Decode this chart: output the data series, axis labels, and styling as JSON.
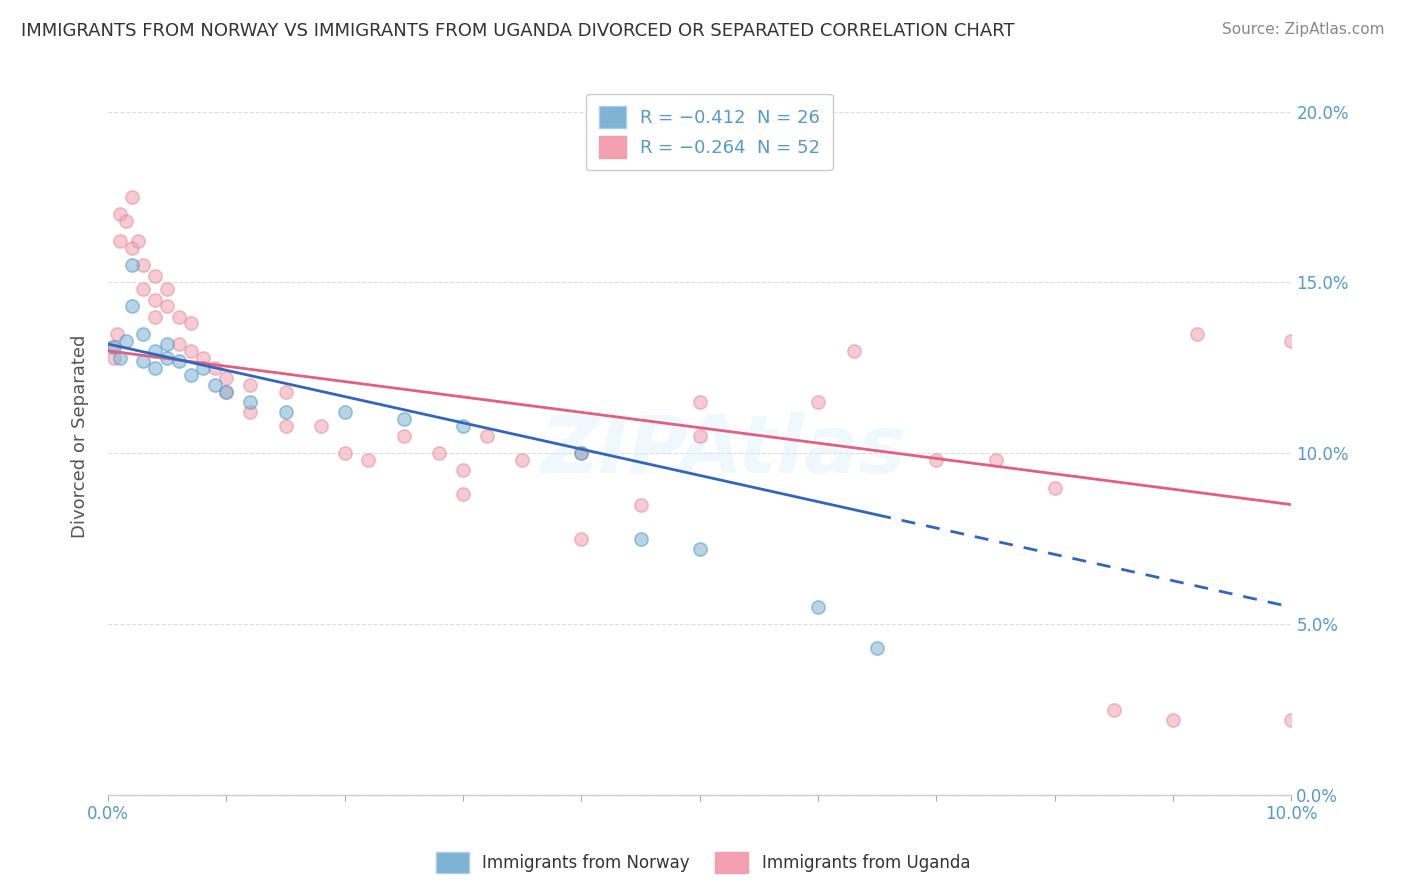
{
  "title": "IMMIGRANTS FROM NORWAY VS IMMIGRANTS FROM UGANDA DIVORCED OR SEPARATED CORRELATION CHART",
  "source": "Source: ZipAtlas.com",
  "ylabel": "Divorced or Separated",
  "watermark": "ZIPAtlas",
  "legend": [
    {
      "label": "R = −0.412  N = 26",
      "color": "#a8c4e0"
    },
    {
      "label": "R = −0.264  N = 52",
      "color": "#f4a0b0"
    }
  ],
  "norway_color": "#7fb3d3",
  "uganda_color": "#f4a0b0",
  "norway_scatter": [
    [
      0.0005,
      0.131
    ],
    [
      0.001,
      0.128
    ],
    [
      0.0015,
      0.133
    ],
    [
      0.002,
      0.155
    ],
    [
      0.002,
      0.143
    ],
    [
      0.003,
      0.135
    ],
    [
      0.003,
      0.127
    ],
    [
      0.004,
      0.13
    ],
    [
      0.004,
      0.125
    ],
    [
      0.005,
      0.132
    ],
    [
      0.005,
      0.128
    ],
    [
      0.006,
      0.127
    ],
    [
      0.007,
      0.123
    ],
    [
      0.008,
      0.125
    ],
    [
      0.009,
      0.12
    ],
    [
      0.01,
      0.118
    ],
    [
      0.012,
      0.115
    ],
    [
      0.015,
      0.112
    ],
    [
      0.02,
      0.112
    ],
    [
      0.025,
      0.11
    ],
    [
      0.03,
      0.108
    ],
    [
      0.04,
      0.1
    ],
    [
      0.045,
      0.075
    ],
    [
      0.05,
      0.072
    ],
    [
      0.06,
      0.055
    ],
    [
      0.065,
      0.043
    ]
  ],
  "uganda_scatter": [
    [
      0.0003,
      0.131
    ],
    [
      0.0005,
      0.128
    ],
    [
      0.0008,
      0.135
    ],
    [
      0.001,
      0.17
    ],
    [
      0.001,
      0.162
    ],
    [
      0.0015,
      0.168
    ],
    [
      0.002,
      0.175
    ],
    [
      0.002,
      0.16
    ],
    [
      0.0025,
      0.162
    ],
    [
      0.003,
      0.155
    ],
    [
      0.003,
      0.148
    ],
    [
      0.004,
      0.152
    ],
    [
      0.004,
      0.145
    ],
    [
      0.004,
      0.14
    ],
    [
      0.005,
      0.148
    ],
    [
      0.005,
      0.143
    ],
    [
      0.006,
      0.14
    ],
    [
      0.006,
      0.132
    ],
    [
      0.007,
      0.138
    ],
    [
      0.007,
      0.13
    ],
    [
      0.008,
      0.128
    ],
    [
      0.009,
      0.125
    ],
    [
      0.01,
      0.122
    ],
    [
      0.01,
      0.118
    ],
    [
      0.012,
      0.12
    ],
    [
      0.012,
      0.112
    ],
    [
      0.015,
      0.118
    ],
    [
      0.015,
      0.108
    ],
    [
      0.018,
      0.108
    ],
    [
      0.02,
      0.1
    ],
    [
      0.022,
      0.098
    ],
    [
      0.025,
      0.105
    ],
    [
      0.028,
      0.1
    ],
    [
      0.03,
      0.095
    ],
    [
      0.03,
      0.088
    ],
    [
      0.032,
      0.105
    ],
    [
      0.035,
      0.098
    ],
    [
      0.04,
      0.1
    ],
    [
      0.04,
      0.075
    ],
    [
      0.045,
      0.085
    ],
    [
      0.05,
      0.115
    ],
    [
      0.05,
      0.105
    ],
    [
      0.06,
      0.115
    ],
    [
      0.063,
      0.13
    ],
    [
      0.07,
      0.098
    ],
    [
      0.075,
      0.098
    ],
    [
      0.08,
      0.09
    ],
    [
      0.085,
      0.025
    ],
    [
      0.09,
      0.022
    ],
    [
      0.092,
      0.135
    ],
    [
      0.1,
      0.133
    ],
    [
      0.1,
      0.022
    ]
  ],
  "norway_line_solid": [
    [
      0.0,
      0.132
    ],
    [
      0.065,
      0.082
    ]
  ],
  "norway_line_dashed": [
    [
      0.065,
      0.082
    ],
    [
      0.1,
      0.055
    ]
  ],
  "uganda_line": [
    [
      0.0,
      0.13
    ],
    [
      0.1,
      0.085
    ]
  ],
  "norway_line_color": "#3366bb",
  "uganda_line_color": "#e06080",
  "xlim": [
    0.0,
    0.1
  ],
  "ylim": [
    0.0,
    0.21
  ],
  "ytick_right_labels": [
    "0.0%",
    "5.0%",
    "10.0%",
    "15.0%",
    "20.0%"
  ],
  "ytick_values": [
    0.0,
    0.05,
    0.1,
    0.15,
    0.2
  ],
  "xtick_values": [
    0.0,
    0.01,
    0.02,
    0.03,
    0.04,
    0.05,
    0.06,
    0.07,
    0.08,
    0.09,
    0.1
  ],
  "background_color": "#ffffff",
  "grid_color": "#dddddd",
  "scatter_size": 90,
  "scatter_alpha": 0.55,
  "scatter_linewidth": 1.2
}
